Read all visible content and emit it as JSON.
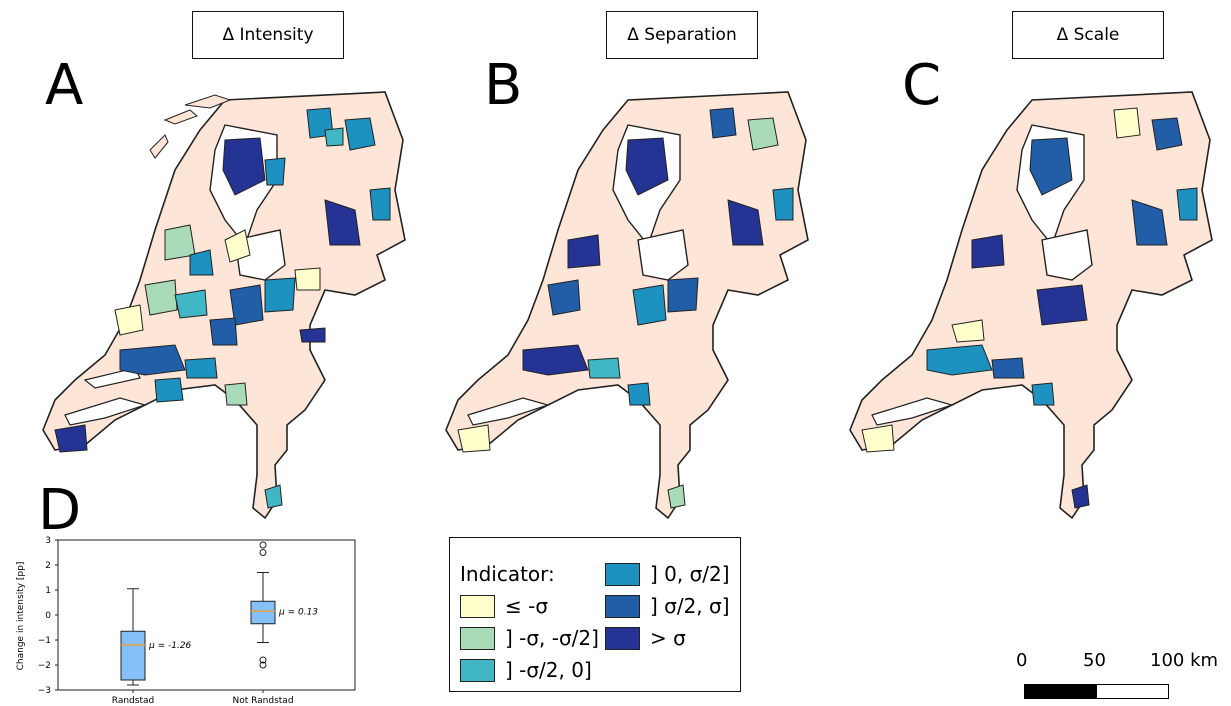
{
  "panels": [
    {
      "letter": "A",
      "title": "Δ Intensity"
    },
    {
      "letter": "B",
      "title": "Δ Separation"
    },
    {
      "letter": "C",
      "title": "Δ Scale"
    }
  ],
  "boxplot": {
    "letter": "D",
    "ylabel": "Change in intensity [pp]",
    "yticks": [
      "3",
      "2",
      "1",
      "0",
      "−1",
      "−2",
      "−3"
    ],
    "ylim": [
      -3,
      3
    ],
    "groups": [
      {
        "label": "Randstad",
        "whisker_low": -2.8,
        "q1": -2.6,
        "median": -1.2,
        "q3": -0.65,
        "whisker_high": 1.05,
        "outliers": [],
        "mean_label": "μ = -1.26"
      },
      {
        "label": "Not Randstad",
        "whisker_low": -1.1,
        "q1": -0.35,
        "median": 0.15,
        "q3": 0.55,
        "whisker_high": 1.7,
        "outliers": [
          2.8,
          2.5,
          -1.8,
          -2.0
        ],
        "mean_label": "μ = 0.13"
      }
    ]
  },
  "legend": {
    "title": "Indicator:",
    "items": [
      {
        "label": "≤ -σ",
        "color": "#ffffcc"
      },
      {
        "label": "] -σ, -σ/2]",
        "color": "#a9dbb8"
      },
      {
        "label": "] -σ/2, 0]",
        "color": "#41b6c4"
      },
      {
        "label": "] 0, σ/2]",
        "color": "#1d91c0"
      },
      {
        "label": "] σ/2, σ]",
        "color": "#225ea8"
      },
      {
        "label": "> σ",
        "color": "#253494"
      }
    ]
  },
  "scalebar": {
    "labels": [
      "0",
      "50",
      "100 km"
    ]
  },
  "colors": {
    "land": "#fde6d8",
    "water": "#ffffff",
    "border": "#222222",
    "box_fill": "#86c0f8",
    "median": "#e8a040"
  }
}
